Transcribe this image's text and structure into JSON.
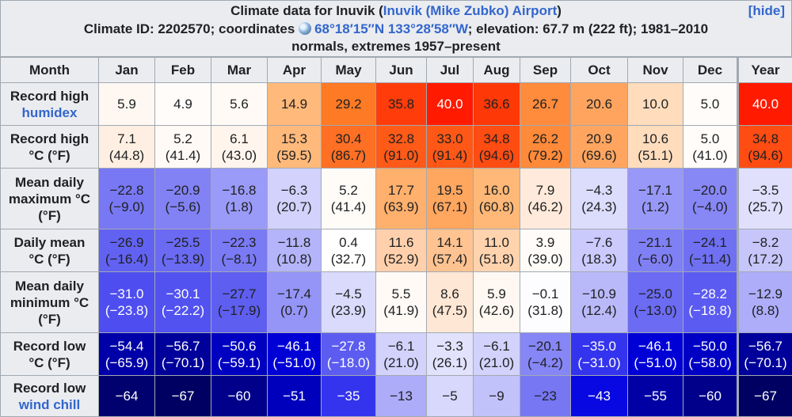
{
  "caption": {
    "title_prefix": "Climate data for Inuvik (",
    "title_link": "Inuvik (Mike Zubko) Airport",
    "title_suffix": ")",
    "hide": "[hide]",
    "line2_prefix": "Climate ID: 2202570; coordinates ",
    "coords": "68°18′15″N 133°28′58″W",
    "line2_suffix": "; elevation: 67.7 m (222 ft); 1981–2010",
    "line3": "normals, extremes 1957–present"
  },
  "header": [
    "Month",
    "Jan",
    "Feb",
    "Mar",
    "Apr",
    "May",
    "Jun",
    "Jul",
    "Aug",
    "Sep",
    "Oct",
    "Nov",
    "Dec",
    "Year"
  ],
  "rows": [
    {
      "label_lines": [
        "Record high"
      ],
      "label_link": "humidex",
      "cells": [
        {
          "v": "5.9",
          "c": "#fff8f2"
        },
        {
          "v": "4.9",
          "c": "#fffcfa"
        },
        {
          "v": "5.6",
          "c": "#fffaf5"
        },
        {
          "v": "14.9",
          "c": "#ffb97a"
        },
        {
          "v": "29.2",
          "c": "#ff7a24"
        },
        {
          "v": "35.8",
          "c": "#ff3c0a"
        },
        {
          "v": "40.0",
          "c": "#ff1a00"
        },
        {
          "v": "36.6",
          "c": "#ff3808"
        },
        {
          "v": "26.7",
          "c": "#ff8b3c"
        },
        {
          "v": "20.6",
          "c": "#ffa45e"
        },
        {
          "v": "10.0",
          "c": "#ffdcbc"
        },
        {
          "v": "5.0",
          "c": "#fffcf9"
        },
        {
          "v": "40.0",
          "c": "#ff1a00"
        }
      ]
    },
    {
      "label_lines": [
        "Record high",
        "°C (°F)"
      ],
      "cells": [
        {
          "v": "7.1",
          "s": "(44.8)",
          "c": "#ffefe2"
        },
        {
          "v": "5.2",
          "s": "(41.4)",
          "c": "#fffaf6"
        },
        {
          "v": "6.1",
          "s": "(43.0)",
          "c": "#fff5ed"
        },
        {
          "v": "15.3",
          "s": "(59.5)",
          "c": "#ffb97b"
        },
        {
          "v": "30.4",
          "s": "(86.7)",
          "c": "#ff6f24"
        },
        {
          "v": "32.8",
          "s": "(91.0)",
          "c": "#ff5a18"
        },
        {
          "v": "33.0",
          "s": "(91.4)",
          "c": "#ff5816"
        },
        {
          "v": "34.8",
          "s": "(94.6)",
          "c": "#ff4c12"
        },
        {
          "v": "26.2",
          "s": "(79.2)",
          "c": "#ff8a3a"
        },
        {
          "v": "20.9",
          "s": "(69.6)",
          "c": "#ffa55f"
        },
        {
          "v": "10.6",
          "s": "(51.1)",
          "c": "#ffdcbc"
        },
        {
          "v": "5.0",
          "s": "(41.0)",
          "c": "#fffcf9"
        },
        {
          "v": "34.8",
          "s": "(94.6)",
          "c": "#ff4c12"
        }
      ]
    },
    {
      "label_lines": [
        "Mean daily",
        "maximum °C",
        "(°F)"
      ],
      "cells": [
        {
          "v": "−22.8",
          "s": "(−9.0)",
          "c": "#7878f4"
        },
        {
          "v": "−20.9",
          "s": "(−5.6)",
          "c": "#8282f5"
        },
        {
          "v": "−16.8",
          "s": "(1.8)",
          "c": "#9a9af8"
        },
        {
          "v": "−6.3",
          "s": "(20.7)",
          "c": "#d2d2fc"
        },
        {
          "v": "5.2",
          "s": "(41.4)",
          "c": "#fffcf8"
        },
        {
          "v": "17.7",
          "s": "(63.9)",
          "c": "#ffb06c"
        },
        {
          "v": "19.5",
          "s": "(67.1)",
          "c": "#ffa65f"
        },
        {
          "v": "16.0",
          "s": "(60.8)",
          "c": "#ffb877"
        },
        {
          "v": "7.9",
          "s": "(46.2)",
          "c": "#ffeadb"
        },
        {
          "v": "−4.3",
          "s": "(24.3)",
          "c": "#dcdcfd"
        },
        {
          "v": "−17.1",
          "s": "(1.2)",
          "c": "#9898f8"
        },
        {
          "v": "−20.0",
          "s": "(−4.0)",
          "c": "#8787f6"
        },
        {
          "v": "−3.5",
          "s": "(25.7)",
          "c": "#e0e0fd"
        }
      ]
    },
    {
      "label_lines": [
        "Daily mean",
        "°C (°F)"
      ],
      "cells": [
        {
          "v": "−26.9",
          "s": "(−16.4)",
          "c": "#6262f2"
        },
        {
          "v": "−25.5",
          "s": "(−13.9)",
          "c": "#6a6af3"
        },
        {
          "v": "−22.3",
          "s": "(−8.1)",
          "c": "#7a7af4"
        },
        {
          "v": "−11.8",
          "s": "(10.8)",
          "c": "#b4b4fa"
        },
        {
          "v": "0.4",
          "s": "(32.7)",
          "c": "#ffffff"
        },
        {
          "v": "11.6",
          "s": "(52.9)",
          "c": "#ffd0ab"
        },
        {
          "v": "14.1",
          "s": "(57.4)",
          "c": "#ffc392"
        },
        {
          "v": "11.0",
          "s": "(51.8)",
          "c": "#ffd3ae"
        },
        {
          "v": "3.9",
          "s": "(39.0)",
          "c": "#fffbf8"
        },
        {
          "v": "−7.6",
          "s": "(18.3)",
          "c": "#cacafc"
        },
        {
          "v": "−21.1",
          "s": "(−6.0)",
          "c": "#8080f5"
        },
        {
          "v": "−24.1",
          "s": "(−11.4)",
          "c": "#7070f3"
        },
        {
          "v": "−8.2",
          "s": "(17.2)",
          "c": "#c6c6fb"
        }
      ]
    },
    {
      "label_lines": [
        "Mean daily",
        "minimum °C",
        "(°F)"
      ],
      "cells": [
        {
          "v": "−31.0",
          "s": "(−23.8)",
          "c": "#4e4ef0"
        },
        {
          "v": "−30.1",
          "s": "(−22.2)",
          "c": "#5252f0"
        },
        {
          "v": "−27.7",
          "s": "(−17.9)",
          "c": "#5e5ef1"
        },
        {
          "v": "−17.4",
          "s": "(0.7)",
          "c": "#9595f8"
        },
        {
          "v": "−4.5",
          "s": "(23.9)",
          "c": "#dadafd"
        },
        {
          "v": "5.5",
          "s": "(41.9)",
          "c": "#fffaf6"
        },
        {
          "v": "8.6",
          "s": "(47.5)",
          "c": "#ffe7d5"
        },
        {
          "v": "5.9",
          "s": "(42.6)",
          "c": "#fff8f2"
        },
        {
          "v": "−0.1",
          "s": "(31.8)",
          "c": "#fdfdff"
        },
        {
          "v": "−10.9",
          "s": "(12.4)",
          "c": "#b9b9fa"
        },
        {
          "v": "−25.0",
          "s": "(−13.0)",
          "c": "#6b6bf3"
        },
        {
          "v": "−28.2",
          "s": "(−18.8)",
          "c": "#5b5bf1"
        },
        {
          "v": "−12.9",
          "s": "(8.8)",
          "c": "#adadf9"
        }
      ]
    },
    {
      "label_lines": [
        "Record low",
        "°C (°F)"
      ],
      "cells": [
        {
          "v": "−54.4",
          "s": "(−65.9)",
          "c": "#0000a8"
        },
        {
          "v": "−56.7",
          "s": "(−70.1)",
          "c": "#00009a"
        },
        {
          "v": "−50.6",
          "s": "(−59.1)",
          "c": "#0000c0"
        },
        {
          "v": "−46.1",
          "s": "(−51.0)",
          "c": "#0000d6"
        },
        {
          "v": "−27.8",
          "s": "(−18.0)",
          "c": "#5c5cf1"
        },
        {
          "v": "−6.1",
          "s": "(21.0)",
          "c": "#d2d2fc"
        },
        {
          "v": "−3.3",
          "s": "(26.1)",
          "c": "#e2e2fd"
        },
        {
          "v": "−6.1",
          "s": "(21.0)",
          "c": "#d2d2fc"
        },
        {
          "v": "−20.1",
          "s": "(−4.2)",
          "c": "#8686f6"
        },
        {
          "v": "−35.0",
          "s": "(−31.0)",
          "c": "#3434ee"
        },
        {
          "v": "−46.1",
          "s": "(−51.0)",
          "c": "#0000d6"
        },
        {
          "v": "−50.0",
          "s": "(−58.0)",
          "c": "#0000c4"
        },
        {
          "v": "−56.7",
          "s": "(−70.1)",
          "c": "#00009a"
        }
      ]
    },
    {
      "label_lines": [
        "Record low"
      ],
      "label_link": "wind chill",
      "cells": [
        {
          "v": "−64",
          "c": "#00006e"
        },
        {
          "v": "−67",
          "c": "#000062"
        },
        {
          "v": "−60",
          "c": "#00008a"
        },
        {
          "v": "−51",
          "c": "#0000bc"
        },
        {
          "v": "−35",
          "c": "#3434ee"
        },
        {
          "v": "−13",
          "c": "#acacf9"
        },
        {
          "v": "−5",
          "c": "#d8d8fd"
        },
        {
          "v": "−9",
          "c": "#c2c2fb"
        },
        {
          "v": "−23",
          "c": "#7777f4"
        },
        {
          "v": "−43",
          "c": "#0808e2"
        },
        {
          "v": "−55",
          "c": "#0000a4"
        },
        {
          "v": "−60",
          "c": "#00008a"
        },
        {
          "v": "−67",
          "c": "#000062"
        }
      ]
    }
  ]
}
